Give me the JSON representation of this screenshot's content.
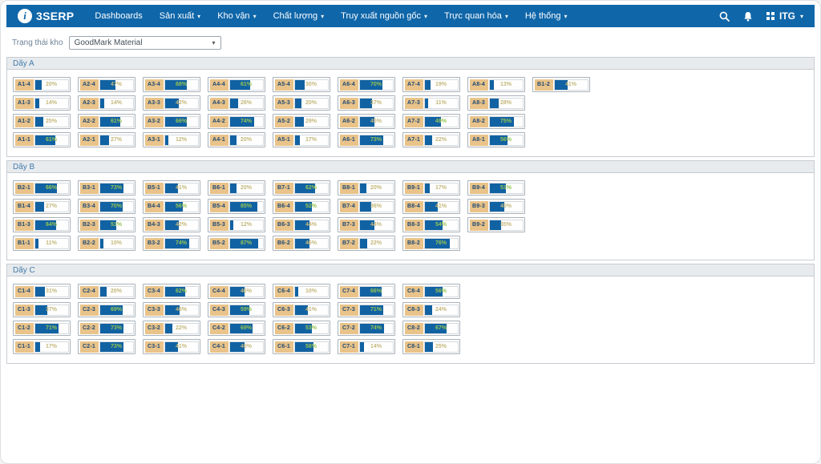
{
  "navbar": {
    "brand": "3SERP",
    "items": [
      {
        "label": "Dashboards",
        "dropdown": false
      },
      {
        "label": "Sản xuất",
        "dropdown": true
      },
      {
        "label": "Kho vận",
        "dropdown": true
      },
      {
        "label": "Chất lượng",
        "dropdown": true
      },
      {
        "label": "Truy xuất nguồn gốc",
        "dropdown": true
      },
      {
        "label": "Trực quan hóa",
        "dropdown": true
      },
      {
        "label": "Hệ thống",
        "dropdown": true
      }
    ],
    "right": {
      "org": "ITG"
    }
  },
  "filter": {
    "label": "Trạng thái kho",
    "value": "GoodMark Material"
  },
  "colors": {
    "navbar_bg": "#0f66a9",
    "bar_fill": "#1162a2",
    "slot_label_bg": "#e9c389",
    "pct_text": "#c5b87b",
    "pct_text_on_fill": "#97c553",
    "section_header_bg": "#e8ebee",
    "section_title": "#417aa9"
  },
  "sections": [
    {
      "title": "Dãy A",
      "columns": [
        [
          {
            "label": "A1-4",
            "pct": "20%"
          },
          {
            "label": "A1-3",
            "pct": "14%"
          },
          {
            "label": "A1-2",
            "pct": "25%"
          },
          {
            "label": "A1-1",
            "pct": "61%"
          }
        ],
        [
          {
            "label": "A2-4",
            "pct": "47%"
          },
          {
            "label": "A2-3",
            "pct": "14%"
          },
          {
            "label": "A2-2",
            "pct": "61%"
          },
          {
            "label": "A2-1",
            "pct": "27%"
          }
        ],
        [
          {
            "label": "A3-4",
            "pct": "68%"
          },
          {
            "label": "A3-3",
            "pct": "42%"
          },
          {
            "label": "A3-2",
            "pct": "66%"
          },
          {
            "label": "A3-1",
            "pct": "12%"
          }
        ],
        [
          {
            "label": "A4-4",
            "pct": "61%"
          },
          {
            "label": "A4-3",
            "pct": "26%"
          },
          {
            "label": "A4-2",
            "pct": "74%"
          },
          {
            "label": "A4-1",
            "pct": "20%"
          }
        ],
        [
          {
            "label": "A5-4",
            "pct": "30%"
          },
          {
            "label": "A5-3",
            "pct": "20%"
          },
          {
            "label": "A5-2",
            "pct": "29%"
          },
          {
            "label": "A5-1",
            "pct": "17%"
          }
        ],
        [
          {
            "label": "A6-4",
            "pct": "70%"
          },
          {
            "label": "A6-3",
            "pct": "37%"
          },
          {
            "label": "A6-2",
            "pct": "45%"
          },
          {
            "label": "A6-1",
            "pct": "73%"
          }
        ],
        [
          {
            "label": "A7-4",
            "pct": "19%"
          },
          {
            "label": "A7-3",
            "pct": "11%"
          },
          {
            "label": "A7-2",
            "pct": "49%"
          },
          {
            "label": "A7-1",
            "pct": "22%"
          }
        ],
        [
          {
            "label": "A8-4",
            "pct": "13%"
          },
          {
            "label": "A8-3",
            "pct": "28%"
          },
          {
            "label": "A8-2",
            "pct": "75%"
          },
          {
            "label": "A8-1",
            "pct": "56%"
          }
        ],
        [
          {
            "label": "B1-2",
            "pct": "41%"
          }
        ]
      ]
    },
    {
      "title": "Dãy B",
      "columns": [
        [
          {
            "label": "B2-1",
            "pct": "66%"
          },
          {
            "label": "B1-4",
            "pct": "27%"
          },
          {
            "label": "B1-3",
            "pct": "64%"
          },
          {
            "label": "B1-1",
            "pct": "11%"
          }
        ],
        [
          {
            "label": "B3-1",
            "pct": "73%"
          },
          {
            "label": "B3-4",
            "pct": "70%"
          },
          {
            "label": "B2-3",
            "pct": "51%"
          },
          {
            "label": "B2-2",
            "pct": "10%"
          }
        ],
        [
          {
            "label": "B5-1",
            "pct": "41%"
          },
          {
            "label": "B4-4",
            "pct": "56%"
          },
          {
            "label": "B4-3",
            "pct": "42%"
          },
          {
            "label": "B3-2",
            "pct": "74%"
          }
        ],
        [
          {
            "label": "B6-1",
            "pct": "20%"
          },
          {
            "label": "B5-4",
            "pct": "85%"
          },
          {
            "label": "B5-3",
            "pct": "12%"
          },
          {
            "label": "B5-2",
            "pct": "87%"
          }
        ],
        [
          {
            "label": "B7-1",
            "pct": "62%"
          },
          {
            "label": "B6-4",
            "pct": "52%"
          },
          {
            "label": "B6-3",
            "pct": "44%"
          },
          {
            "label": "B6-2",
            "pct": "46%"
          }
        ],
        [
          {
            "label": "B8-1",
            "pct": "20%"
          },
          {
            "label": "B7-4",
            "pct": "36%"
          },
          {
            "label": "B7-3",
            "pct": "44%"
          },
          {
            "label": "B7-2",
            "pct": "22%"
          }
        ],
        [
          {
            "label": "B9-1",
            "pct": "17%"
          },
          {
            "label": "B8-4",
            "pct": "41%"
          },
          {
            "label": "B8-3",
            "pct": "54%"
          },
          {
            "label": "B8-2",
            "pct": "76%"
          }
        ],
        [
          {
            "label": "B9-4",
            "pct": "51%"
          },
          {
            "label": "B9-3",
            "pct": "45%"
          },
          {
            "label": "B9-2",
            "pct": "35%"
          }
        ]
      ]
    },
    {
      "title": "Dãy C",
      "columns": [
        [
          {
            "label": "C1-4",
            "pct": "31%"
          },
          {
            "label": "C1-3",
            "pct": "37%"
          },
          {
            "label": "C1-2",
            "pct": "71%"
          },
          {
            "label": "C1-1",
            "pct": "17%"
          }
        ],
        [
          {
            "label": "C2-4",
            "pct": "20%"
          },
          {
            "label": "C2-3",
            "pct": "69%"
          },
          {
            "label": "C2-2",
            "pct": "73%"
          },
          {
            "label": "C2-1",
            "pct": "73%"
          }
        ],
        [
          {
            "label": "C3-4",
            "pct": "62%"
          },
          {
            "label": "C3-3",
            "pct": "46%"
          },
          {
            "label": "C3-2",
            "pct": "22%"
          },
          {
            "label": "C3-1",
            "pct": "41%"
          }
        ],
        [
          {
            "label": "C4-4",
            "pct": "46%"
          },
          {
            "label": "C4-3",
            "pct": "59%"
          },
          {
            "label": "C4-2",
            "pct": "69%"
          },
          {
            "label": "C4-1",
            "pct": "45%"
          }
        ],
        [
          {
            "label": "C6-4",
            "pct": "10%"
          },
          {
            "label": "C6-3",
            "pct": "41%"
          },
          {
            "label": "C6-2",
            "pct": "53%"
          },
          {
            "label": "C6-1",
            "pct": "58%"
          }
        ],
        [
          {
            "label": "C7-4",
            "pct": "66%"
          },
          {
            "label": "C7-3",
            "pct": "71%"
          },
          {
            "label": "C7-2",
            "pct": "74%"
          },
          {
            "label": "C7-1",
            "pct": "14%"
          }
        ],
        [
          {
            "label": "C8-4",
            "pct": "56%"
          },
          {
            "label": "C8-3",
            "pct": "24%"
          },
          {
            "label": "C8-2",
            "pct": "67%"
          },
          {
            "label": "C8-1",
            "pct": "25%"
          }
        ]
      ]
    }
  ]
}
